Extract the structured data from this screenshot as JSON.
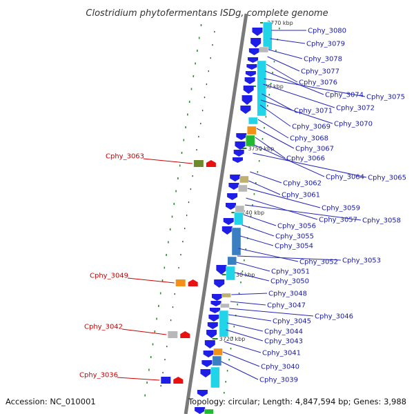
{
  "title": "Clostridium phytofermentans ISDg, complete genome",
  "accession": "Accession: NC_010001",
  "topology": "Topology: circular; Length: 4,847,594 bp; Genes: 3,988",
  "kbp_markers": [
    "3770 kbp",
    "3760 kbp",
    "3750 kbp",
    "3740 kbp",
    "3730 kbp",
    "3720 kbp"
  ],
  "right_genes": [
    "Cphy_3080",
    "Cphy_3079",
    "Cphy_3078",
    "Cphy_3077",
    "Cphy_3076",
    "Cphy_3074",
    "Cphy_3075",
    "Cphy_3072",
    "Cphy_3071",
    "Cphy_3070",
    "Cphy_3069",
    "Cphy_3068",
    "Cphy_3067",
    "Cphy_3066",
    "Cphy_3064",
    "Cphy_3065",
    "Cphy_3062",
    "Cphy_3061",
    "Cphy_3059",
    "Cphy_3057",
    "Cphy_3058",
    "Cphy_3056",
    "Cphy_3055",
    "Cphy_3054",
    "Cphy_3052",
    "Cphy_3053",
    "Cphy_3051",
    "Cphy_3050",
    "Cphy_3048",
    "Cphy_3047",
    "Cphy_3046",
    "Cphy_3045",
    "Cphy_3044",
    "Cphy_3043",
    "Cphy_3041",
    "Cphy_3040",
    "Cphy_3039"
  ],
  "left_genes": [
    "Cphy_3063",
    "Cphy_3049",
    "Cphy_3042",
    "Cphy_3036"
  ],
  "colors": {
    "backbone": "#7a7a7a",
    "forward_gene": "#1e1ee6",
    "reverse_gene": "#e81010",
    "cyan_block": "#22d4e8",
    "steel_block": "#3a7fc2",
    "orange_block": "#f29018",
    "green_block": "#22b832",
    "tan_block": "#c0b070",
    "olive_block": "#6f8a2a",
    "gray_block": "#b8b8b8",
    "tick": "#1f8a1f",
    "label_blue": "#1a1aa8",
    "label_red": "#cc0000"
  }
}
